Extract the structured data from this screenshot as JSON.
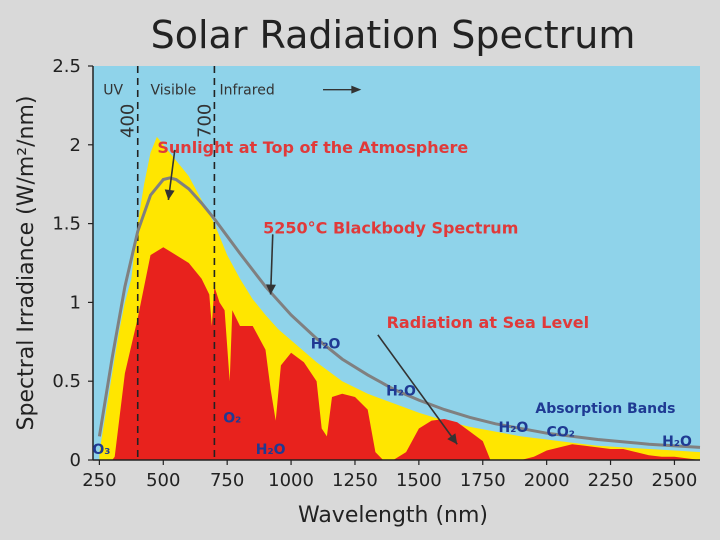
{
  "chart_data": {
    "type": "area",
    "title": "Solar Radiation Spectrum",
    "xlabel": "Wavelength (nm)",
    "ylabel": "Spectral Irradiance (W/m²/nm)",
    "xlim": [
      225,
      2600
    ],
    "ylim": [
      0,
      2.5
    ],
    "x_ticks": [
      250,
      500,
      750,
      1000,
      1250,
      1500,
      1750,
      2000,
      2250,
      2500
    ],
    "y_ticks": [
      "0",
      "0.5",
      "1",
      "1.5",
      "2",
      "2.5"
    ],
    "grid": false,
    "background_color": "#8fd3ea",
    "regions": [
      {
        "label": "UV"
      },
      {
        "label": "Visible"
      },
      {
        "label": "Infrared"
      }
    ],
    "boundaries": [
      {
        "x": 400,
        "label": "400"
      },
      {
        "x": 700,
        "label": "700"
      }
    ],
    "series": [
      {
        "name": "Sunlight at Top of the Atmosphere",
        "color": "#ffe600",
        "x": [
          250,
          275,
          300,
          325,
          350,
          375,
          400,
          425,
          450,
          475,
          500,
          525,
          550,
          575,
          600,
          650,
          700,
          750,
          800,
          850,
          900,
          950,
          1000,
          1100,
          1200,
          1300,
          1400,
          1500,
          1600,
          1700,
          1800,
          1900,
          2000,
          2100,
          2200,
          2300,
          2400,
          2500,
          2600
        ],
        "y": [
          0.05,
          0.3,
          0.55,
          0.8,
          1.0,
          1.15,
          1.5,
          1.75,
          1.95,
          2.05,
          2.0,
          1.95,
          1.9,
          1.85,
          1.8,
          1.65,
          1.5,
          1.3,
          1.15,
          1.02,
          0.92,
          0.83,
          0.76,
          0.62,
          0.5,
          0.42,
          0.36,
          0.3,
          0.25,
          0.21,
          0.18,
          0.15,
          0.13,
          0.11,
          0.09,
          0.08,
          0.07,
          0.06,
          0.05
        ]
      },
      {
        "name": "5250°C Blackbody Spectrum",
        "color": "#808080",
        "x": [
          250,
          300,
          350,
          400,
          450,
          500,
          525,
          550,
          600,
          650,
          700,
          750,
          800,
          900,
          1000,
          1100,
          1200,
          1300,
          1400,
          1500,
          1600,
          1700,
          1800,
          2000,
          2200,
          2400,
          2600
        ],
        "y": [
          0.15,
          0.65,
          1.1,
          1.45,
          1.68,
          1.78,
          1.79,
          1.78,
          1.72,
          1.63,
          1.53,
          1.42,
          1.31,
          1.1,
          0.92,
          0.77,
          0.64,
          0.54,
          0.45,
          0.38,
          0.32,
          0.27,
          0.23,
          0.17,
          0.13,
          0.1,
          0.08
        ]
      },
      {
        "name": "Radiation at Sea Level",
        "color": "#e8221d",
        "x": [
          250,
          300,
          310,
          350,
          400,
          450,
          500,
          550,
          600,
          650,
          680,
          690,
          700,
          720,
          740,
          760,
          770,
          800,
          850,
          900,
          920,
          940,
          960,
          1000,
          1050,
          1100,
          1120,
          1140,
          1160,
          1200,
          1250,
          1300,
          1330,
          1360,
          1400,
          1450,
          1500,
          1550,
          1600,
          1650,
          1700,
          1750,
          1780,
          1800,
          1850,
          1900,
          1950,
          2000,
          2050,
          2100,
          2150,
          2200,
          2250,
          2300,
          2350,
          2400,
          2450,
          2500,
          2550,
          2600
        ],
        "y": [
          0,
          0,
          0.02,
          0.55,
          0.9,
          1.3,
          1.35,
          1.3,
          1.25,
          1.15,
          1.05,
          0.85,
          1.1,
          1.0,
          0.95,
          0.5,
          0.95,
          0.85,
          0.85,
          0.7,
          0.45,
          0.25,
          0.6,
          0.68,
          0.62,
          0.5,
          0.2,
          0.15,
          0.4,
          0.42,
          0.4,
          0.32,
          0.05,
          0.0,
          0.0,
          0.05,
          0.2,
          0.25,
          0.26,
          0.24,
          0.18,
          0.12,
          0.0,
          0.0,
          0.0,
          0.0,
          0.02,
          0.06,
          0.08,
          0.1,
          0.09,
          0.08,
          0.07,
          0.07,
          0.05,
          0.03,
          0.02,
          0.02,
          0.01,
          0.0
        ]
      }
    ],
    "annotations": [
      {
        "text": "Sunlight at Top of the Atmosphere",
        "style": "red",
        "x": 1085,
        "y": 1.98,
        "arrow_to": [
          520,
          1.65
        ]
      },
      {
        "text": "5250°C Blackbody Spectrum",
        "style": "red",
        "x": 1390,
        "y": 1.47,
        "arrow_to": [
          920,
          1.05
        ]
      },
      {
        "text": "Radiation at Sea Level",
        "style": "red",
        "x": 1770,
        "y": 0.87,
        "arrow_to": [
          1650,
          0.1
        ]
      },
      {
        "text": "H₂O",
        "style": "blue",
        "x": 1135,
        "y": 0.74
      },
      {
        "text": "H₂O",
        "style": "blue",
        "x": 1430,
        "y": 0.44
      },
      {
        "text": "Absorption Bands",
        "style": "blue",
        "x": 2230,
        "y": 0.33
      },
      {
        "text": "H₂O",
        "style": "blue",
        "x": 1870,
        "y": 0.21
      },
      {
        "text": "CO₂",
        "style": "blue",
        "x": 2055,
        "y": 0.18
      },
      {
        "text": "H₂O",
        "style": "blue",
        "x": 2510,
        "y": 0.12
      },
      {
        "text": "O₂",
        "style": "blue",
        "x": 770,
        "y": 0.27
      },
      {
        "text": "H₂O",
        "style": "blue",
        "x": 920,
        "y": 0.07
      },
      {
        "text": "O₃",
        "style": "blue",
        "x": 258,
        "y": 0.07
      }
    ],
    "region_label_y": 2.35,
    "arrow_label": {
      "from": [
        1125,
        2.35
      ],
      "to": [
        1275,
        2.35
      ]
    }
  }
}
